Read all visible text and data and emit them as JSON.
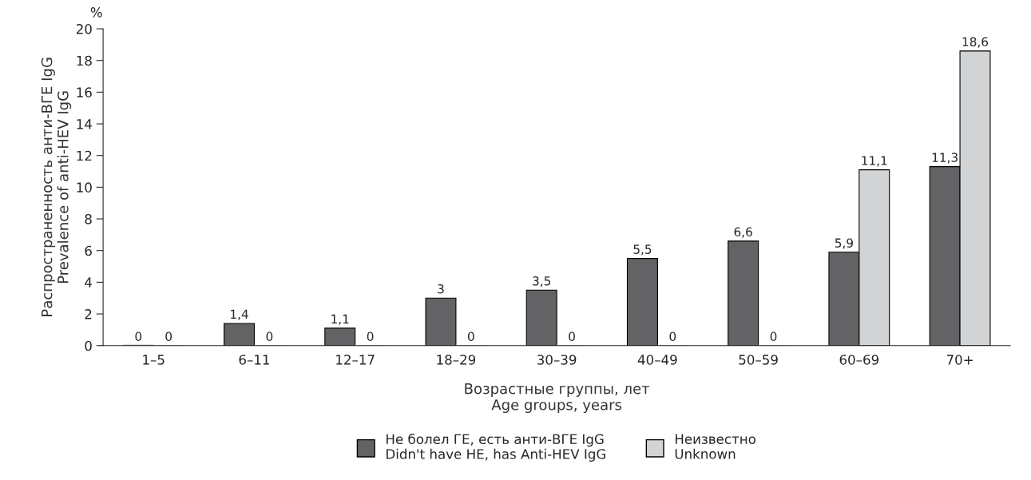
{
  "chart_data": {
    "type": "bar",
    "xlabel": "Возрастные группы, лет\nAge groups, years",
    "ylabel": "Распространенность анти-ВГЕ IgG\nPrevalence of anti-HEV IgG",
    "annotations": [
      "%"
    ],
    "categories": [
      "1–5",
      "6–11",
      "12–17",
      "18–29",
      "30–39",
      "40–49",
      "50–59",
      "60–69",
      "70+"
    ],
    "series": [
      {
        "name": "Не болел ГЕ, есть анти-ВГЕ IgG\nDidn't have HE, has Anti-HEV IgG",
        "color": "#636365",
        "values": [
          0,
          1.4,
          1.1,
          3,
          3.5,
          5.5,
          6.6,
          5.9,
          11.3
        ],
        "value_labels": [
          "0",
          "1,4",
          "1,1",
          "3",
          "3,5",
          "5,5",
          "6,6",
          "5,9",
          "11,3"
        ]
      },
      {
        "name": "Неизвестно\nUnknown",
        "color": "#d2d3d5",
        "values": [
          0,
          0,
          0,
          0,
          0,
          0,
          0,
          11.1,
          18.6
        ],
        "value_labels": [
          "0",
          "0",
          "0",
          "0",
          "0",
          "0",
          "0",
          "11,1",
          "18,6"
        ]
      }
    ],
    "ylim": [
      0,
      20
    ],
    "yticks": [
      0,
      2,
      4,
      6,
      8,
      10,
      12,
      14,
      16,
      18,
      20
    ],
    "grid": false,
    "legend": "bottom"
  }
}
